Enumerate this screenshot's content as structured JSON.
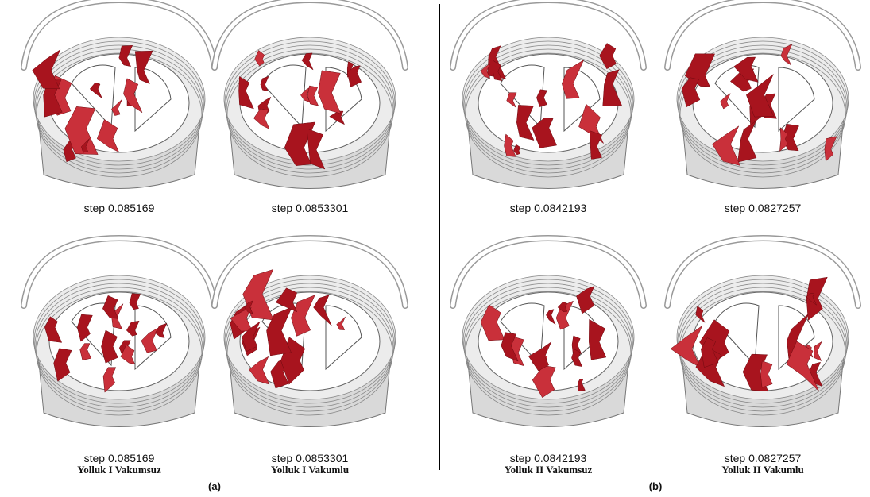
{
  "panels": [
    {
      "label": "(a)",
      "columns": [
        "Yolluk I Vakumsuz",
        "Yolluk I Vakumlu"
      ],
      "images": [
        {
          "step": "step 0.085169"
        },
        {
          "step": "step 0.0853301"
        },
        {
          "step": "step 0.085169"
        },
        {
          "step": "step 0.0853301"
        }
      ]
    },
    {
      "label": "(b)",
      "columns": [
        "Yolluk II Vakumsuz",
        "Yolluk II Vakumlu"
      ],
      "images": [
        {
          "step": "step 0.0842193"
        },
        {
          "step": "step 0.0827257"
        },
        {
          "step": "step 0.0842193"
        },
        {
          "step": "step 0.0827257"
        }
      ]
    }
  ]
}
